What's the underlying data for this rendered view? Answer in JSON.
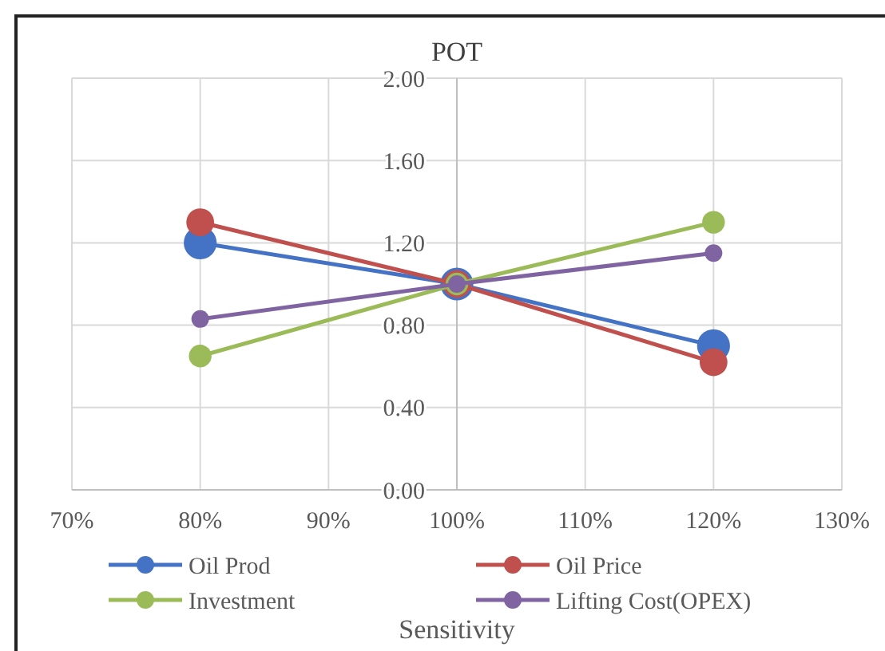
{
  "chart_data": {
    "type": "line",
    "title": "POT",
    "xlabel": "Sensitivity",
    "x": [
      80,
      100,
      120
    ],
    "series": [
      {
        "name": "Oil Prod",
        "color": "#4472c4",
        "values": [
          1.2,
          1.0,
          0.7
        ]
      },
      {
        "name": "Oil Price",
        "color": "#c0504d",
        "values": [
          1.3,
          1.0,
          0.62
        ]
      },
      {
        "name": "Investment",
        "color": "#9bbb59",
        "values": [
          0.65,
          1.0,
          1.3
        ]
      },
      {
        "name": "Lifting Cost(OPEX)",
        "color": "#8064a2",
        "values": [
          0.83,
          1.0,
          1.15
        ]
      }
    ],
    "xlim": [
      70,
      130
    ],
    "xticks": [
      {
        "value": 70,
        "label": "70%"
      },
      {
        "value": 80,
        "label": "80%"
      },
      {
        "value": 90,
        "label": "90%"
      },
      {
        "value": 100,
        "label": "100%"
      },
      {
        "value": 110,
        "label": "110%"
      },
      {
        "value": 120,
        "label": "120%"
      },
      {
        "value": 130,
        "label": "130%"
      }
    ],
    "ylim": [
      0,
      2
    ],
    "yticks": [
      {
        "value": 0,
        "label": "0.00"
      },
      {
        "value": 0.4,
        "label": "0.40"
      },
      {
        "value": 0.8,
        "label": "0.80"
      },
      {
        "value": 1.2,
        "label": "1.20"
      },
      {
        "value": 1.6,
        "label": "1.60"
      },
      {
        "value": 2,
        "label": "2.00"
      }
    ],
    "grid": true,
    "legend": "bottom",
    "marker": "circle",
    "line_style": "solid"
  }
}
